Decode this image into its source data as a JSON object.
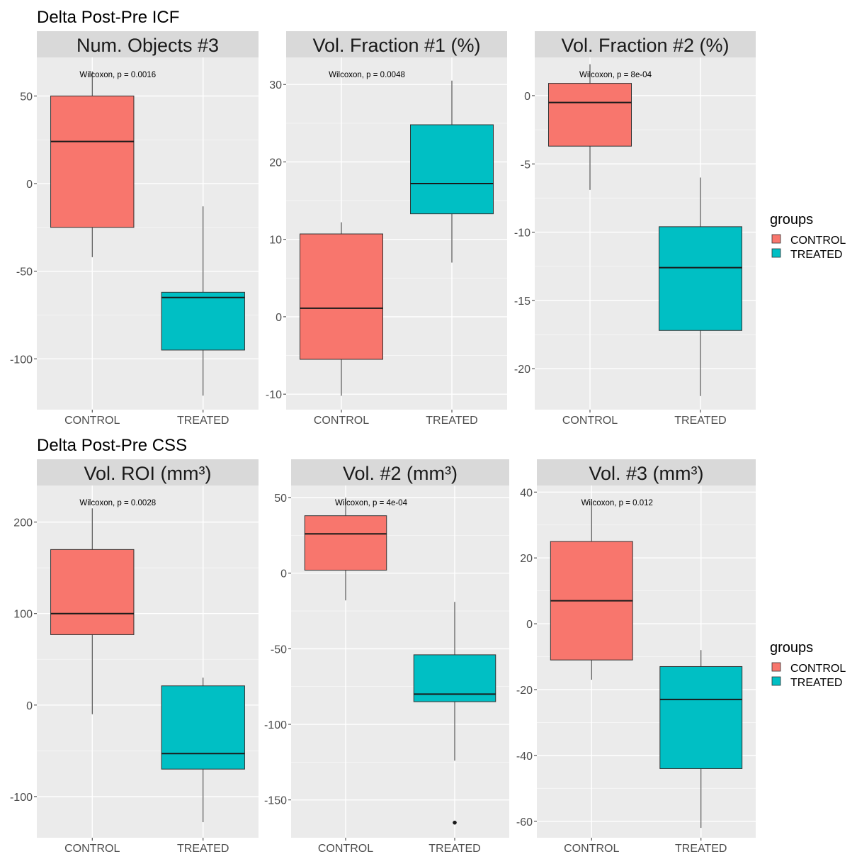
{
  "sections": [
    {
      "title": "Delta Post-Pre ICF"
    },
    {
      "title": "Delta Post-Pre CSS"
    }
  ],
  "legend": {
    "title": "groups",
    "items": [
      {
        "label": "CONTROL",
        "color": "#F8766D"
      },
      {
        "label": "TREATED",
        "color": "#00BFC4"
      }
    ]
  },
  "colors": {
    "panel_bg": "#EBEBEB",
    "strip_bg": "#D9D9D9",
    "grid": "#FFFFFF",
    "control": "#F8766D",
    "treated": "#00BFC4"
  },
  "chart_data": [
    {
      "type": "box",
      "title": "Num. Objects #3",
      "section": "Delta Post-Pre ICF",
      "annotation": "Wilcoxon, p = 0.0016",
      "categories": [
        "CONTROL",
        "TREATED"
      ],
      "ylim": [
        -129,
        72
      ],
      "yticks": [
        -100,
        -50,
        0,
        50
      ],
      "ytick_labels": [
        "-100",
        "-50",
        "0",
        "50"
      ],
      "boxes": [
        {
          "group": "CONTROL",
          "whisker_low": -42,
          "q1": -25,
          "median": 24,
          "q3": 50,
          "whisker_high": 64,
          "outliers": []
        },
        {
          "group": "TREATED",
          "whisker_low": -121,
          "q1": -95,
          "median": -65,
          "q3": -62,
          "whisker_high": -13,
          "outliers": []
        }
      ]
    },
    {
      "type": "box",
      "title": "Vol. Fraction #1 (%)",
      "section": "Delta Post-Pre ICF",
      "annotation": "Wilcoxon, p = 0.0048",
      "categories": [
        "CONTROL",
        "TREATED"
      ],
      "ylim": [
        -12,
        33.5
      ],
      "yticks": [
        -10,
        0,
        10,
        20,
        30
      ],
      "ytick_labels": [
        "-10",
        "0",
        "10",
        "20",
        "30"
      ],
      "boxes": [
        {
          "group": "CONTROL",
          "whisker_low": -10.2,
          "q1": -5.5,
          "median": 1.1,
          "q3": 10.7,
          "whisker_high": 12.2,
          "outliers": []
        },
        {
          "group": "TREATED",
          "whisker_low": 7.0,
          "q1": 13.3,
          "median": 17.2,
          "q3": 24.8,
          "whisker_high": 30.5,
          "outliers": []
        }
      ]
    },
    {
      "type": "box",
      "title": "Vol. Fraction #2 (%)",
      "section": "Delta Post-Pre ICF",
      "annotation": "Wilcoxon, p = 8e-04",
      "categories": [
        "CONTROL",
        "TREATED"
      ],
      "ylim": [
        -23,
        2.8
      ],
      "yticks": [
        -20,
        -15,
        -10,
        -5,
        0
      ],
      "ytick_labels": [
        "-20",
        "-15",
        "-10",
        "-5",
        "0"
      ],
      "boxes": [
        {
          "group": "CONTROL",
          "whisker_low": -6.9,
          "q1": -3.7,
          "median": -0.5,
          "q3": 0.9,
          "whisker_high": 2.3,
          "outliers": []
        },
        {
          "group": "TREATED",
          "whisker_low": -22.0,
          "q1": -17.2,
          "median": -12.6,
          "q3": -9.6,
          "whisker_high": -6.0,
          "outliers": []
        }
      ]
    },
    {
      "type": "box",
      "title": "Vol. ROI (mm³)",
      "section": "Delta Post-Pre CSS",
      "annotation": "Wilcoxon, p = 0.0028",
      "categories": [
        "CONTROL",
        "TREATED"
      ],
      "ylim": [
        -145,
        240
      ],
      "yticks": [
        -100,
        0,
        100,
        200
      ],
      "ytick_labels": [
        "-100",
        "0",
        "100",
        "200"
      ],
      "boxes": [
        {
          "group": "CONTROL",
          "whisker_low": -10,
          "q1": 77,
          "median": 100,
          "q3": 170,
          "whisker_high": 215,
          "outliers": []
        },
        {
          "group": "TREATED",
          "whisker_low": -128,
          "q1": -70,
          "median": -53,
          "q3": 21,
          "whisker_high": 30,
          "outliers": []
        }
      ]
    },
    {
      "type": "box",
      "title": "Vol. #2 (mm³)",
      "section": "Delta Post-Pre CSS",
      "annotation": "Wilcoxon, p = 4e-04",
      "categories": [
        "CONTROL",
        "TREATED"
      ],
      "ylim": [
        -175,
        58
      ],
      "yticks": [
        -150,
        -100,
        -50,
        0,
        50
      ],
      "ytick_labels": [
        "-150",
        "-100",
        "-50",
        "0",
        "50"
      ],
      "boxes": [
        {
          "group": "CONTROL",
          "whisker_low": -18,
          "q1": 2,
          "median": 26,
          "q3": 38,
          "whisker_high": 50,
          "outliers": []
        },
        {
          "group": "TREATED",
          "whisker_low": -124,
          "q1": -85,
          "median": -80,
          "q3": -54,
          "whisker_high": -19,
          "outliers": [
            -165
          ]
        }
      ]
    },
    {
      "type": "box",
      "title": "Vol. #3 (mm³)",
      "section": "Delta Post-Pre CSS",
      "annotation": "Wilcoxon, p = 0.012",
      "categories": [
        "CONTROL",
        "TREATED"
      ],
      "ylim": [
        -65,
        42
      ],
      "yticks": [
        -60,
        -40,
        -20,
        0,
        20,
        40
      ],
      "ytick_labels": [
        "-60",
        "-40",
        "-20",
        "0",
        "20",
        "40"
      ],
      "boxes": [
        {
          "group": "CONTROL",
          "whisker_low": -17,
          "q1": -11,
          "median": 7,
          "q3": 25,
          "whisker_high": 37,
          "outliers": []
        },
        {
          "group": "TREATED",
          "whisker_low": -62,
          "q1": -44,
          "median": -23,
          "q3": -13,
          "whisker_high": -8,
          "outliers": []
        }
      ]
    }
  ]
}
